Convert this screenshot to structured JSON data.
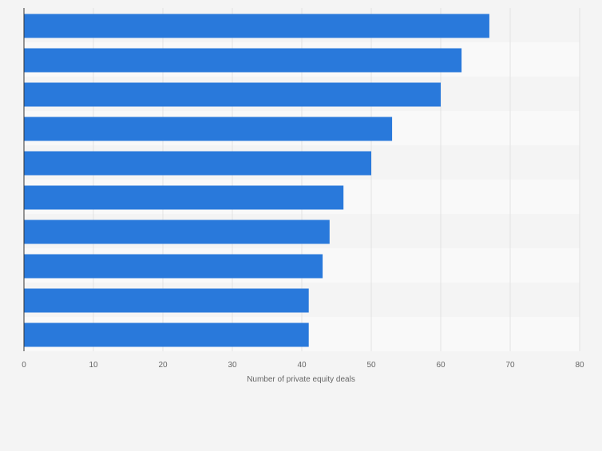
{
  "chart_data": {
    "type": "bar",
    "orientation": "horizontal",
    "title": "",
    "xlabel": "Number of private equity deals",
    "ylabel": "",
    "categories": [
      "",
      "",
      "",
      "",
      "",
      "",
      "",
      "",
      "",
      ""
    ],
    "values": [
      67,
      63,
      60,
      53,
      50,
      46,
      44,
      43,
      41,
      41
    ],
    "xlim": [
      0,
      80
    ],
    "ticks": [
      0,
      10,
      20,
      30,
      40,
      50,
      60,
      70,
      80
    ],
    "grid": true,
    "legend": "none"
  },
  "colors": {
    "bar": "#2979db",
    "background": "#f4f4f4",
    "band_light": "#f9f9f9",
    "band_dark": "#f4f4f4",
    "gridline": "#e2e2e2",
    "axis": "#333333",
    "tick_text": "#666666"
  }
}
